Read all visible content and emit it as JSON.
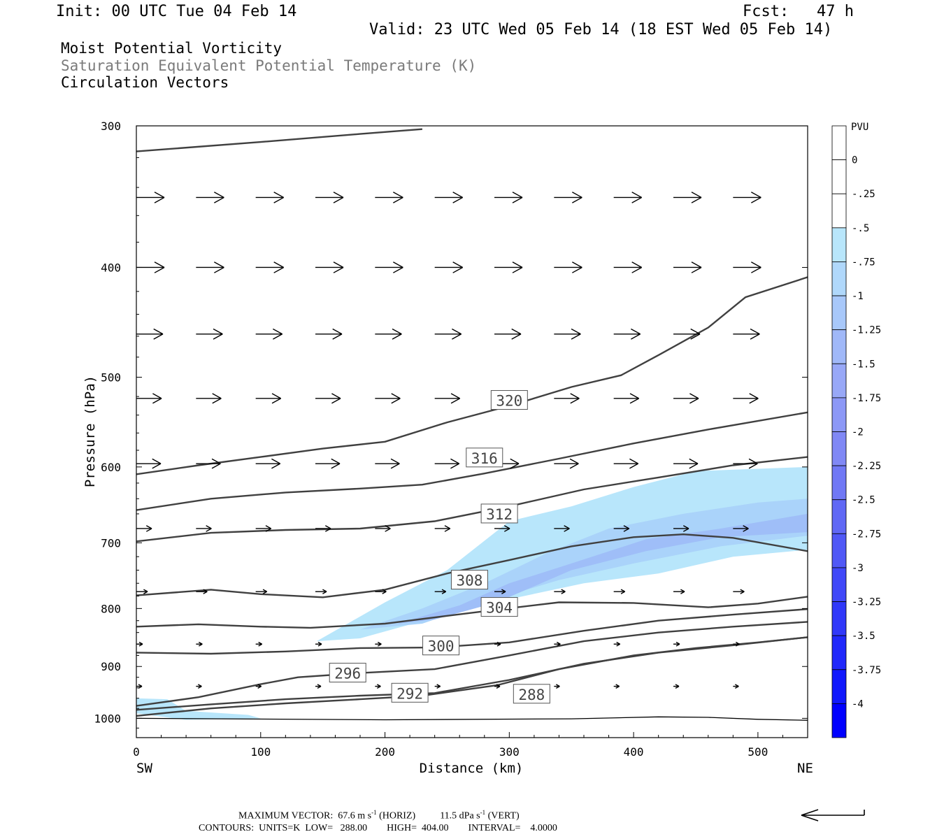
{
  "header": {
    "init": "Init: 00 UTC Tue 04 Feb 14",
    "fcst": "Fcst:   47 h",
    "valid": "Valid: 23 UTC Wed 05 Feb 14 (18 EST Wed 05 Feb 14)",
    "field1": "Moist Potential Vorticity",
    "field2": "Saturation Equivalent Potential Temperature (K)",
    "field3": "Circulation Vectors"
  },
  "footer": {
    "max_vector_label": "MAXIMUM VECTOR:",
    "max_horiz_value": "67.6 m s",
    "max_horiz_unit": "(HORIZ)",
    "max_vert_value": "11.5 dPa s",
    "max_vert_unit": "(VERT)",
    "exp": "-1",
    "contours": "CONTOURS:  UNITS=K  LOW=   288.00        HIGH=  404.00        INTERVAL=    4.0000"
  },
  "chart_data": {
    "type": "cross-section",
    "xlabel": "Distance (km)",
    "ylabel": "Pressure (hPa)",
    "x_left_label": "SW",
    "x_right_label": "NE",
    "xlim": [
      0,
      540
    ],
    "ylim": [
      1040,
      300
    ],
    "xticks": [
      0,
      100,
      200,
      300,
      400,
      500
    ],
    "yticks": [
      300,
      400,
      500,
      600,
      700,
      800,
      900,
      1000
    ],
    "colorbar": {
      "unit": "PVU",
      "ticks": [
        "0",
        "-.25",
        "-.5",
        "-.75",
        "-1",
        "-1.25",
        "-1.5",
        "-1.75",
        "-2",
        "-2.25",
        "-2.5",
        "-2.75",
        "-3",
        "-3.25",
        "-3.5",
        "-3.75",
        "-4"
      ],
      "colors": [
        "#ffffff",
        "#ffffff",
        "#b8e6fb",
        "#b0d8fb",
        "#a8c8fa",
        "#a0b8f8",
        "#98a8f7",
        "#8c98f6",
        "#8088f5",
        "#7078f5",
        "#6068f5",
        "#5058f6",
        "#4048f8",
        "#3038f9",
        "#2028fb",
        "#1018fd",
        "#0000ff"
      ]
    },
    "theta_contours": [
      {
        "label": "288",
        "label_at": [
          318,
          952
        ],
        "points": [
          [
            0,
            995
          ],
          [
            60,
            980
          ],
          [
            120,
            970
          ],
          [
            180,
            962
          ],
          [
            230,
            955
          ],
          [
            290,
            935
          ],
          [
            340,
            905
          ],
          [
            400,
            880
          ],
          [
            450,
            867
          ],
          [
            500,
            857
          ],
          [
            540,
            848
          ]
        ]
      },
      {
        "label": "292",
        "label_at": [
          220,
          950
        ],
        "points": [
          [
            0,
            983
          ],
          [
            60,
            972
          ],
          [
            120,
            962
          ],
          [
            180,
            955
          ],
          [
            240,
            950
          ],
          [
            300,
            925
          ],
          [
            360,
            895
          ],
          [
            420,
            875
          ],
          [
            480,
            862
          ],
          [
            540,
            848
          ]
        ]
      },
      {
        "label": "296",
        "label_at": [
          170,
          912
        ],
        "points": [
          [
            0,
            975
          ],
          [
            50,
            958
          ],
          [
            100,
            933
          ],
          [
            130,
            920
          ],
          [
            180,
            912
          ],
          [
            240,
            905
          ],
          [
            300,
            880
          ],
          [
            360,
            855
          ],
          [
            420,
            840
          ],
          [
            480,
            830
          ],
          [
            540,
            822
          ]
        ]
      },
      {
        "label": "300",
        "label_at": [
          245,
          863
        ],
        "points": [
          [
            0,
            875
          ],
          [
            60,
            877
          ],
          [
            120,
            873
          ],
          [
            180,
            867
          ],
          [
            240,
            866
          ],
          [
            300,
            857
          ],
          [
            360,
            837
          ],
          [
            420,
            820
          ],
          [
            480,
            810
          ],
          [
            540,
            801
          ]
        ]
      },
      {
        "label": "304",
        "label_at": [
          292,
          798
        ],
        "points": [
          [
            0,
            830
          ],
          [
            50,
            826
          ],
          [
            100,
            830
          ],
          [
            140,
            832
          ],
          [
            200,
            825
          ],
          [
            250,
            812
          ],
          [
            290,
            802
          ],
          [
            340,
            790
          ],
          [
            400,
            791
          ],
          [
            460,
            798
          ],
          [
            500,
            792
          ],
          [
            540,
            781
          ]
        ]
      },
      {
        "label": "308",
        "label_at": [
          268,
          755
        ],
        "points": [
          [
            0,
            779
          ],
          [
            60,
            770
          ],
          [
            100,
            777
          ],
          [
            150,
            782
          ],
          [
            200,
            770
          ],
          [
            250,
            745
          ],
          [
            300,
            725
          ],
          [
            350,
            705
          ],
          [
            400,
            692
          ],
          [
            440,
            688
          ],
          [
            480,
            693
          ],
          [
            540,
            712
          ]
        ]
      },
      {
        "label": "312",
        "label_at": [
          292,
          660
        ],
        "points": [
          [
            0,
            698
          ],
          [
            60,
            686
          ],
          [
            120,
            682
          ],
          [
            180,
            680
          ],
          [
            240,
            670
          ],
          [
            300,
            650
          ],
          [
            360,
            628
          ],
          [
            420,
            613
          ],
          [
            480,
            598
          ],
          [
            540,
            588
          ]
        ]
      },
      {
        "label": "316",
        "label_at": [
          280,
          589
        ],
        "points": [
          [
            0,
            655
          ],
          [
            60,
            640
          ],
          [
            120,
            632
          ],
          [
            180,
            627
          ],
          [
            230,
            622
          ],
          [
            280,
            608
          ],
          [
            340,
            590
          ],
          [
            400,
            572
          ],
          [
            460,
            556
          ],
          [
            540,
            537
          ]
        ]
      },
      {
        "label": "320",
        "label_at": [
          300,
          524
        ],
        "points": [
          [
            0,
            609
          ],
          [
            50,
            598
          ],
          [
            100,
            588
          ],
          [
            150,
            578
          ],
          [
            200,
            570
          ],
          [
            250,
            548
          ],
          [
            300,
            530
          ],
          [
            350,
            510
          ],
          [
            390,
            498
          ],
          [
            420,
            478
          ],
          [
            460,
            452
          ],
          [
            490,
            425
          ],
          [
            540,
            408
          ]
        ]
      },
      {
        "label": "",
        "label_at": null,
        "points": [
          [
            0,
            316
          ],
          [
            100,
            310
          ],
          [
            180,
            305
          ],
          [
            230,
            302
          ]
        ]
      }
    ],
    "surface_line": [
      [
        0,
        1000
      ],
      [
        200,
        1003
      ],
      [
        350,
        1001
      ],
      [
        420,
        997
      ],
      [
        460,
        998
      ],
      [
        500,
        1002
      ],
      [
        540,
        1004
      ]
    ],
    "vectors": [
      {
        "p": 347,
        "dx": 40,
        "dy": 0
      },
      {
        "p": 400,
        "dx": 40,
        "dy": 0
      },
      {
        "p": 458,
        "dx": 38,
        "dy": 0
      },
      {
        "p": 522,
        "dx": 36,
        "dy": 0
      },
      {
        "p": 596,
        "dx": 35,
        "dy": 0
      },
      {
        "p": 680,
        "dx": 22,
        "dy": 0
      },
      {
        "p": 773,
        "dx": 16,
        "dy": 0
      },
      {
        "p": 860,
        "dx": 9,
        "dy": 0
      },
      {
        "p": 937,
        "dx": 8,
        "dy": 0
      }
    ],
    "pv_regions": [
      {
        "level": "-.25",
        "color": "#b8e6fb",
        "points": [
          [
            145,
            855
          ],
          [
            200,
            790
          ],
          [
            250,
            740
          ],
          [
            300,
            670
          ],
          [
            350,
            650
          ],
          [
            400,
            625
          ],
          [
            450,
            605
          ],
          [
            540,
            600
          ],
          [
            540,
            710
          ],
          [
            480,
            720
          ],
          [
            420,
            745
          ],
          [
            360,
            760
          ],
          [
            300,
            785
          ],
          [
            240,
            815
          ],
          [
            180,
            850
          ]
        ]
      },
      {
        "level": "-.5",
        "color": "#aad3fa",
        "points": [
          [
            180,
            835
          ],
          [
            230,
            800
          ],
          [
            280,
            760
          ],
          [
            330,
            715
          ],
          [
            380,
            680
          ],
          [
            440,
            660
          ],
          [
            500,
            645
          ],
          [
            540,
            640
          ],
          [
            540,
            690
          ],
          [
            470,
            705
          ],
          [
            400,
            730
          ],
          [
            340,
            755
          ],
          [
            280,
            790
          ],
          [
            230,
            825
          ]
        ]
      },
      {
        "level": "-.75",
        "color": "#9fbef8",
        "points": [
          [
            210,
            825
          ],
          [
            260,
            795
          ],
          [
            300,
            760
          ],
          [
            350,
            730
          ],
          [
            410,
            695
          ],
          [
            470,
            680
          ],
          [
            540,
            660
          ],
          [
            540,
            685
          ],
          [
            470,
            692
          ],
          [
            410,
            712
          ],
          [
            350,
            740
          ],
          [
            290,
            790
          ],
          [
            240,
            818
          ]
        ]
      },
      {
        "level": "-.25",
        "color": "#b8e6fb",
        "points": [
          [
            0,
            960
          ],
          [
            25,
            962
          ],
          [
            40,
            985
          ],
          [
            90,
            993
          ],
          [
            100,
            1000
          ],
          [
            40,
            1003
          ],
          [
            0,
            990
          ]
        ]
      }
    ]
  }
}
